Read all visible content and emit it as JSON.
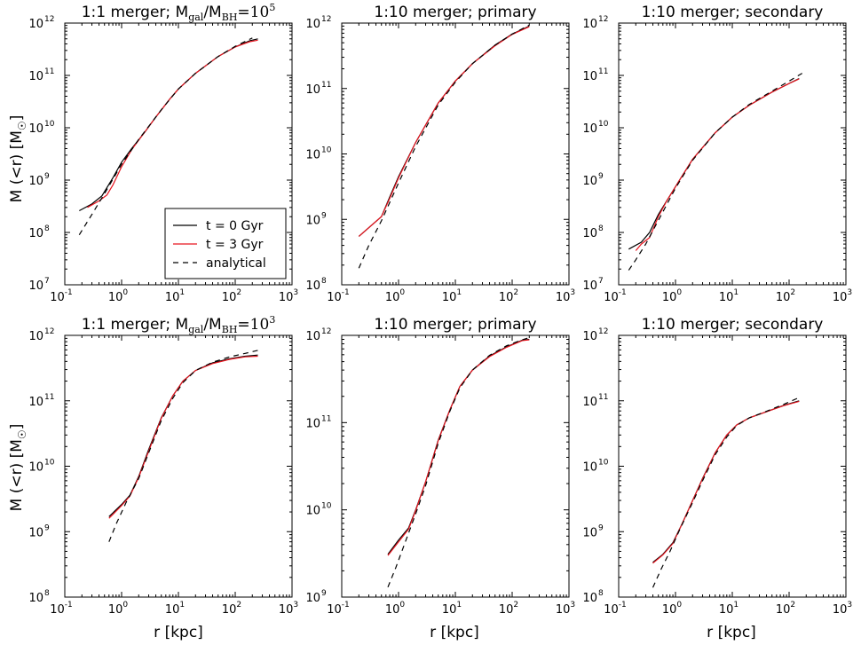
{
  "figure": {
    "y_label": "M (<r) [M",
    "y_label_symbol": "☉",
    "y_label_close": "]",
    "x_label": "r [kpc]"
  },
  "legend": {
    "entries": [
      {
        "label": "t = 0 Gyr",
        "color": "#000000",
        "dash": "solid"
      },
      {
        "label": "t = 3 Gyr",
        "color": "#e8141e",
        "dash": "solid"
      },
      {
        "label": "analytical",
        "color": "#000000",
        "dash": "dashed"
      }
    ]
  },
  "colors": {
    "t0": "#000000",
    "t3": "#e8141e",
    "analytical": "#000000",
    "axes": "#000000"
  },
  "chart_data": [
    {
      "type": "line",
      "log_x": true,
      "log_y": true,
      "title": {
        "prefix": "1:1 merger; M",
        "sub1": "gal",
        "mid": "/M",
        "sub2": "BH",
        "eq": "=10",
        "sup": "5"
      },
      "xlim": [
        0.1,
        1000
      ],
      "ylim": [
        10000000.0,
        1000000000000.0
      ],
      "x_ticks": [
        {
          "base": "10",
          "exp": "-1"
        },
        {
          "base": "10",
          "exp": "0"
        },
        {
          "base": "10",
          "exp": "1"
        },
        {
          "base": "10",
          "exp": "2"
        },
        {
          "base": "10",
          "exp": "3"
        }
      ],
      "y_ticks": [
        {
          "base": "10",
          "exp": "7"
        },
        {
          "base": "10",
          "exp": "8"
        },
        {
          "base": "10",
          "exp": "9"
        },
        {
          "base": "10",
          "exp": "10"
        },
        {
          "base": "10",
          "exp": "11"
        },
        {
          "base": "10",
          "exp": "12"
        }
      ],
      "series": [
        {
          "name": "t = 0 Gyr",
          "x": [
            0.18,
            0.3,
            0.45,
            0.7,
            1.0,
            1.5,
            2.5,
            4,
            7,
            10,
            20,
            50,
            100,
            180,
            250
          ],
          "y": [
            260000000.0,
            350000000.0,
            500000000.0,
            1100000000.0,
            2200000000.0,
            4000000000.0,
            8000000000.0,
            16000000000.0,
            35000000000.0,
            55000000000.0,
            110000000000.0,
            230000000000.0,
            350000000000.0,
            460000000000.0,
            500000000000.0
          ]
        },
        {
          "name": "t = 3 Gyr",
          "x": [
            0.25,
            0.4,
            0.55,
            0.7,
            1.0,
            1.5,
            2.5,
            4,
            7,
            10,
            20,
            50,
            100,
            180,
            250
          ],
          "y": [
            300000000.0,
            400000000.0,
            520000000.0,
            800000000.0,
            1800000000.0,
            3800000000.0,
            8000000000.0,
            16000000000.0,
            35000000000.0,
            55000000000.0,
            110000000000.0,
            230000000000.0,
            350000000000.0,
            440000000000.0,
            470000000000.0
          ]
        },
        {
          "name": "analytical",
          "x": [
            0.18,
            0.3,
            0.5,
            1,
            2,
            5,
            10,
            20,
            50,
            100,
            200
          ],
          "y": [
            90000000.0,
            220000000.0,
            550000000.0,
            2000000000.0,
            6000000000.0,
            22000000000.0,
            55000000000.0,
            110000000000.0,
            230000000000.0,
            360000000000.0,
            520000000000.0
          ]
        }
      ]
    },
    {
      "type": "line",
      "log_x": true,
      "log_y": true,
      "title": {
        "text": "1:10 merger; primary"
      },
      "xlim": [
        0.1,
        1000
      ],
      "ylim": [
        100000000.0,
        1000000000000.0
      ],
      "x_ticks": [
        {
          "base": "10",
          "exp": "-1"
        },
        {
          "base": "10",
          "exp": "0"
        },
        {
          "base": "10",
          "exp": "1"
        },
        {
          "base": "10",
          "exp": "2"
        },
        {
          "base": "10",
          "exp": "3"
        }
      ],
      "y_ticks": [
        {
          "base": "10",
          "exp": "8"
        },
        {
          "base": "10",
          "exp": "9"
        },
        {
          "base": "10",
          "exp": "10"
        },
        {
          "base": "10",
          "exp": "11"
        },
        {
          "base": "10",
          "exp": "12"
        }
      ],
      "series": [
        {
          "name": "t = 0 Gyr",
          "x": [
            0.2,
            0.5,
            0.7,
            1,
            2,
            5,
            10,
            20,
            50,
            100,
            200
          ],
          "y": [
            550000000.0,
            1100000000.0,
            2200000000.0,
            4500000000.0,
            15000000000.0,
            60000000000.0,
            130000000000.0,
            240000000000.0,
            460000000000.0,
            680000000000.0,
            900000000000.0
          ]
        },
        {
          "name": "t = 3 Gyr",
          "x": [
            0.2,
            0.5,
            0.7,
            1,
            2,
            5,
            10,
            20,
            50,
            100,
            200
          ],
          "y": [
            550000000.0,
            1100000000.0,
            2100000000.0,
            4300000000.0,
            15000000000.0,
            60000000000.0,
            130000000000.0,
            240000000000.0,
            450000000000.0,
            670000000000.0,
            880000000000.0
          ]
        },
        {
          "name": "analytical",
          "x": [
            0.2,
            0.3,
            0.5,
            1,
            2,
            5,
            10,
            20,
            50,
            100,
            200
          ],
          "y": [
            180000000.0,
            400000000.0,
            950000000.0,
            3600000000.0,
            13000000000.0,
            56000000000.0,
            125000000000.0,
            240000000000.0,
            460000000000.0,
            680000000000.0,
            930000000000.0
          ]
        }
      ]
    },
    {
      "type": "line",
      "log_x": true,
      "log_y": true,
      "title": {
        "text": "1:10 merger; secondary"
      },
      "xlim": [
        0.1,
        1000
      ],
      "ylim": [
        10000000.0,
        1000000000000.0
      ],
      "x_ticks": [
        {
          "base": "10",
          "exp": "-1"
        },
        {
          "base": "10",
          "exp": "0"
        },
        {
          "base": "10",
          "exp": "1"
        },
        {
          "base": "10",
          "exp": "2"
        },
        {
          "base": "10",
          "exp": "3"
        }
      ],
      "y_ticks": [
        {
          "base": "10",
          "exp": "7"
        },
        {
          "base": "10",
          "exp": "8"
        },
        {
          "base": "10",
          "exp": "9"
        },
        {
          "base": "10",
          "exp": "10"
        },
        {
          "base": "10",
          "exp": "11"
        },
        {
          "base": "10",
          "exp": "12"
        }
      ],
      "series": [
        {
          "name": "t = 0 Gyr",
          "x": [
            0.15,
            0.25,
            0.35,
            0.5,
            0.7,
            1,
            2,
            5,
            10,
            20,
            50,
            100,
            150
          ],
          "y": [
            48000000.0,
            65000000.0,
            100000000.0,
            220000000.0,
            400000000.0,
            750000000.0,
            2500000000.0,
            8000000000.0,
            16000000000.0,
            27000000000.0,
            48000000000.0,
            70000000000.0,
            87000000000.0
          ]
        },
        {
          "name": "t = 3 Gyr",
          "x": [
            0.2,
            0.25,
            0.35,
            0.5,
            0.7,
            1,
            2,
            5,
            10,
            20,
            50,
            100,
            150
          ],
          "y": [
            45000000.0,
            60000000.0,
            80000000.0,
            200000000.0,
            400000000.0,
            750000000.0,
            2500000000.0,
            8000000000.0,
            16000000000.0,
            27000000000.0,
            48000000000.0,
            70000000000.0,
            86000000000.0
          ]
        },
        {
          "name": "analytical",
          "x": [
            0.15,
            0.2,
            0.3,
            0.5,
            1,
            2,
            5,
            10,
            20,
            50,
            100,
            170
          ],
          "y": [
            19000000.0,
            30000000.0,
            60000000.0,
            170000000.0,
            700000000.0,
            2400000000.0,
            8000000000.0,
            16000000000.0,
            28000000000.0,
            50000000000.0,
            78000000000.0,
            110000000000.0
          ]
        }
      ]
    },
    {
      "type": "line",
      "log_x": true,
      "log_y": true,
      "title": {
        "prefix": "1:1 merger; M",
        "sub1": "gal",
        "mid": "/M",
        "sub2": "BH",
        "eq": "=10",
        "sup": "3"
      },
      "xlim": [
        0.1,
        1000
      ],
      "ylim": [
        100000000.0,
        1000000000000.0
      ],
      "x_ticks": [
        {
          "base": "10",
          "exp": "-1"
        },
        {
          "base": "10",
          "exp": "0"
        },
        {
          "base": "10",
          "exp": "1"
        },
        {
          "base": "10",
          "exp": "2"
        },
        {
          "base": "10",
          "exp": "3"
        }
      ],
      "y_ticks": [
        {
          "base": "10",
          "exp": "8"
        },
        {
          "base": "10",
          "exp": "9"
        },
        {
          "base": "10",
          "exp": "10"
        },
        {
          "base": "10",
          "exp": "11"
        },
        {
          "base": "10",
          "exp": "12"
        }
      ],
      "series": [
        {
          "name": "t = 0 Gyr",
          "x": [
            0.6,
            1.0,
            1.4,
            2,
            3,
            5,
            8,
            12,
            20,
            40,
            80,
            150,
            250
          ],
          "y": [
            1700000000.0,
            2600000000.0,
            3600000000.0,
            7000000000.0,
            18000000000.0,
            55000000000.0,
            120000000000.0,
            200000000000.0,
            290000000000.0,
            380000000000.0,
            440000000000.0,
            480000000000.0,
            500000000000.0
          ]
        },
        {
          "name": "t = 3 Gyr",
          "x": [
            0.6,
            1.0,
            1.4,
            2,
            3,
            5,
            8,
            12,
            20,
            40,
            80,
            150,
            250
          ],
          "y": [
            1600000000.0,
            2500000000.0,
            3500000000.0,
            6800000000.0,
            17000000000.0,
            54000000000.0,
            120000000000.0,
            200000000000.0,
            290000000000.0,
            370000000000.0,
            430000000000.0,
            470000000000.0,
            480000000000.0
          ]
        },
        {
          "name": "analytical",
          "x": [
            0.6,
            0.8,
            1.2,
            2,
            3,
            5,
            8,
            12,
            20,
            40,
            80,
            150,
            250
          ],
          "y": [
            700000000.0,
            1300000000.0,
            2800000000.0,
            6500000000.0,
            16000000000.0,
            50000000000.0,
            110000000000.0,
            190000000000.0,
            290000000000.0,
            390000000000.0,
            470000000000.0,
            530000000000.0,
            590000000000.0
          ]
        }
      ]
    },
    {
      "type": "line",
      "log_x": true,
      "log_y": true,
      "title": {
        "text": "1:10 merger; primary"
      },
      "xlim": [
        0.1,
        1000
      ],
      "ylim": [
        1000000000.0,
        1000000000000.0
      ],
      "x_ticks": [
        {
          "base": "10",
          "exp": "-1"
        },
        {
          "base": "10",
          "exp": "0"
        },
        {
          "base": "10",
          "exp": "1"
        },
        {
          "base": "10",
          "exp": "2"
        },
        {
          "base": "10",
          "exp": "3"
        }
      ],
      "y_ticks": [
        {
          "base": "10",
          "exp": "9"
        },
        {
          "base": "10",
          "exp": "10"
        },
        {
          "base": "10",
          "exp": "11"
        },
        {
          "base": "10",
          "exp": "12"
        }
      ],
      "series": [
        {
          "name": "t = 0 Gyr",
          "x": [
            0.65,
            1.0,
            1.5,
            2,
            3,
            5,
            8,
            12,
            20,
            40,
            80,
            150,
            200
          ],
          "y": [
            3100000000.0,
            4500000000.0,
            6200000000.0,
            10000000000.0,
            21000000000.0,
            63000000000.0,
            140000000000.0,
            260000000000.0,
            400000000000.0,
            580000000000.0,
            740000000000.0,
            880000000000.0,
            900000000000.0
          ]
        },
        {
          "name": "t = 3 Gyr",
          "x": [
            0.65,
            1.0,
            1.5,
            2,
            3,
            5,
            8,
            12,
            20,
            40,
            80,
            150,
            200
          ],
          "y": [
            3000000000.0,
            4300000000.0,
            6000000000.0,
            9800000000.0,
            21000000000.0,
            62000000000.0,
            140000000000.0,
            260000000000.0,
            400000000000.0,
            570000000000.0,
            730000000000.0,
            870000000000.0,
            890000000000.0
          ]
        },
        {
          "name": "analytical",
          "x": [
            0.65,
            0.9,
            1.3,
            2,
            3,
            5,
            8,
            12,
            20,
            40,
            80,
            150,
            200
          ],
          "y": [
            1300000000.0,
            2200000000.0,
            4200000000.0,
            9000000000.0,
            19000000000.0,
            58000000000.0,
            135000000000.0,
            250000000000.0,
            400000000000.0,
            590000000000.0,
            760000000000.0,
            890000000000.0,
            940000000000.0
          ]
        }
      ]
    },
    {
      "type": "line",
      "log_x": true,
      "log_y": true,
      "title": {
        "text": "1:10 merger; secondary"
      },
      "xlim": [
        0.1,
        1000
      ],
      "ylim": [
        100000000.0,
        1000000000000.0
      ],
      "x_ticks": [
        {
          "base": "10",
          "exp": "-1"
        },
        {
          "base": "10",
          "exp": "0"
        },
        {
          "base": "10",
          "exp": "1"
        },
        {
          "base": "10",
          "exp": "2"
        },
        {
          "base": "10",
          "exp": "3"
        }
      ],
      "y_ticks": [
        {
          "base": "10",
          "exp": "8"
        },
        {
          "base": "10",
          "exp": "9"
        },
        {
          "base": "10",
          "exp": "10"
        },
        {
          "base": "10",
          "exp": "11"
        },
        {
          "base": "10",
          "exp": "12"
        }
      ],
      "series": [
        {
          "name": "t = 0 Gyr",
          "x": [
            0.4,
            0.6,
            0.9,
            1.3,
            2,
            3,
            5,
            8,
            12,
            20,
            40,
            80,
            150
          ],
          "y": [
            340000000.0,
            450000000.0,
            680000000.0,
            1300000000.0,
            3000000000.0,
            6500000000.0,
            16000000000.0,
            30000000000.0,
            43000000000.0,
            55000000000.0,
            68000000000.0,
            85000000000.0,
            100000000000.0
          ]
        },
        {
          "name": "t = 3 Gyr",
          "x": [
            0.4,
            0.6,
            0.9,
            1.3,
            2,
            3,
            5,
            8,
            12,
            20,
            40,
            80,
            150
          ],
          "y": [
            330000000.0,
            440000000.0,
            660000000.0,
            1300000000.0,
            3000000000.0,
            6400000000.0,
            16000000000.0,
            30000000000.0,
            43000000000.0,
            55000000000.0,
            68000000000.0,
            84000000000.0,
            98000000000.0
          ]
        },
        {
          "name": "analytical",
          "x": [
            0.4,
            0.55,
            0.8,
            1.2,
            2,
            3,
            5,
            8,
            12,
            20,
            40,
            80,
            150
          ],
          "y": [
            140000000.0,
            260000000.0,
            500000000.0,
            1100000000.0,
            2800000000.0,
            6000000000.0,
            15000000000.0,
            28000000000.0,
            42000000000.0,
            55000000000.0,
            69000000000.0,
            88000000000.0,
            112000000000.0
          ]
        }
      ]
    }
  ]
}
